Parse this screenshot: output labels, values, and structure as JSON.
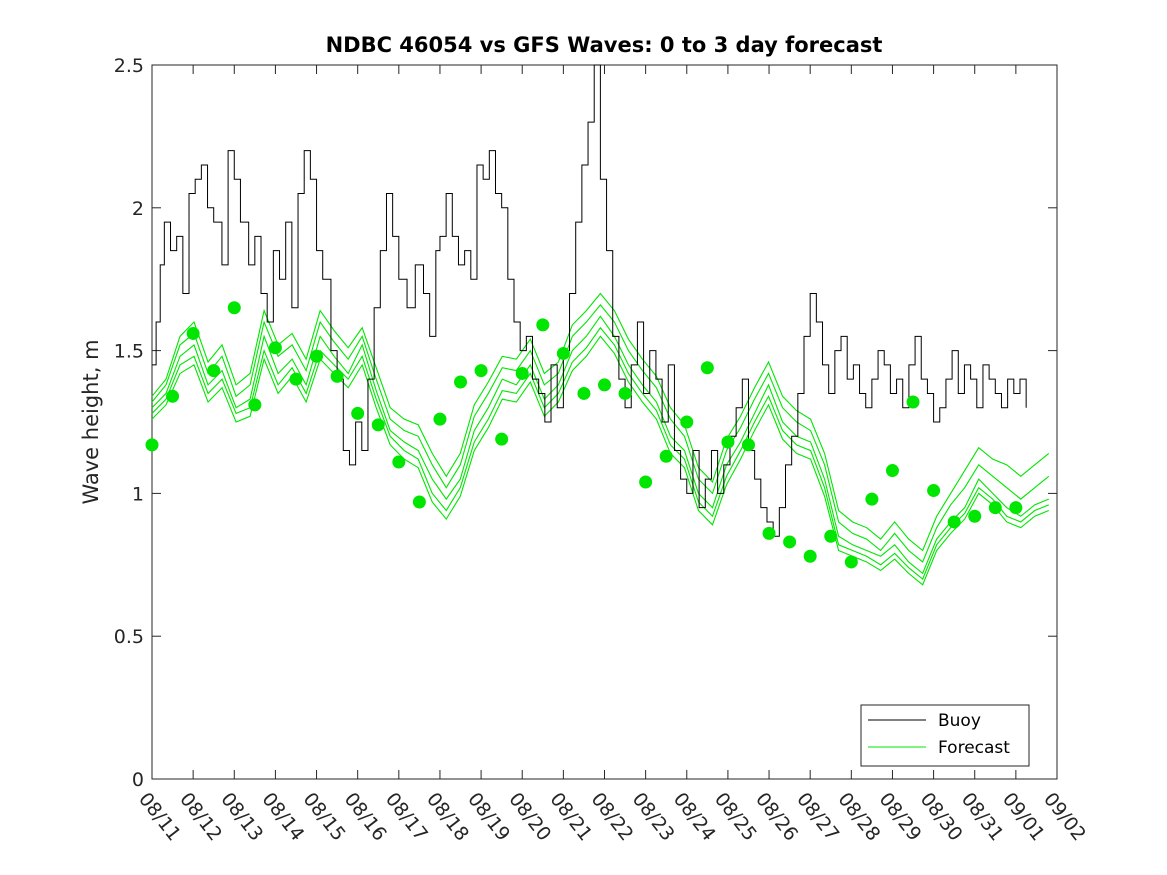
{
  "chart_data": {
    "type": "line",
    "title": "NDBC 46054 vs GFS Waves: 0 to 3 day forecast",
    "xlabel": "",
    "ylabel": "Wave height, m",
    "ylim": [
      0,
      2.5
    ],
    "yticks": [
      0,
      0.5,
      1,
      1.5,
      2,
      2.5
    ],
    "ytick_labels": [
      "0",
      "0.5",
      "1",
      "1.5",
      "2",
      "2.5"
    ],
    "xlim_days": [
      0,
      22
    ],
    "xtick_labels": [
      "08/11",
      "08/12",
      "08/13",
      "08/14",
      "08/15",
      "08/16",
      "08/17",
      "08/18",
      "08/19",
      "08/20",
      "08/21",
      "08/22",
      "08/23",
      "08/24",
      "08/25",
      "08/26",
      "08/27",
      "08/28",
      "08/29",
      "08/30",
      "08/31",
      "09/01",
      "09/02"
    ],
    "legend": {
      "position": "bottom-right",
      "entries": [
        "Buoy",
        "Forecast"
      ]
    },
    "colors": {
      "buoy": "#000000",
      "forecast": "#00e600",
      "axis": "#262626"
    },
    "buoy": {
      "name": "Buoy",
      "x": [
        0.0,
        0.1,
        0.2,
        0.3,
        0.45,
        0.6,
        0.75,
        0.9,
        1.05,
        1.2,
        1.35,
        1.5,
        1.7,
        1.85,
        2.0,
        2.15,
        2.35,
        2.5,
        2.65,
        2.8,
        2.95,
        3.1,
        3.25,
        3.4,
        3.55,
        3.7,
        3.85,
        4.0,
        4.15,
        4.35,
        4.5,
        4.65,
        4.8,
        4.95,
        5.1,
        5.25,
        5.4,
        5.55,
        5.7,
        5.85,
        6.0,
        6.2,
        6.4,
        6.6,
        6.75,
        6.9,
        7.0,
        7.15,
        7.3,
        7.45,
        7.6,
        7.75,
        7.9,
        8.05,
        8.2,
        8.35,
        8.5,
        8.65,
        8.8,
        8.95,
        9.1,
        9.25,
        9.4,
        9.55,
        9.7,
        9.85,
        10.0,
        10.15,
        10.3,
        10.45,
        10.6,
        10.75,
        10.9,
        11.05,
        11.2,
        11.35,
        11.5,
        11.65,
        11.8,
        11.95,
        12.1,
        12.25,
        12.4,
        12.55,
        12.7,
        12.85,
        13.0,
        13.15,
        13.3,
        13.45,
        13.6,
        13.75,
        13.9,
        14.05,
        14.2,
        14.35,
        14.5,
        14.65,
        14.8,
        14.95,
        15.1,
        15.25,
        15.4,
        15.55,
        15.7,
        15.85,
        16.0,
        16.15,
        16.3,
        16.45,
        16.6,
        16.75,
        16.9,
        17.05,
        17.2,
        17.35,
        17.5,
        17.65,
        17.8,
        17.95,
        18.1,
        18.25,
        18.4,
        18.55,
        18.7,
        18.85,
        19.0,
        19.15,
        19.3,
        19.45,
        19.6,
        19.75,
        19.9,
        20.05,
        20.2,
        20.35,
        20.5,
        20.65,
        20.8,
        20.95,
        21.1,
        21.25
      ],
      "y": [
        1.45,
        1.6,
        1.8,
        1.95,
        1.85,
        1.9,
        1.7,
        2.05,
        2.1,
        2.15,
        2.0,
        1.95,
        1.8,
        2.2,
        2.1,
        1.95,
        1.8,
        1.9,
        1.7,
        1.6,
        1.85,
        1.75,
        1.95,
        1.65,
        2.05,
        2.2,
        2.1,
        1.85,
        1.75,
        1.5,
        1.4,
        1.15,
        1.1,
        1.25,
        1.15,
        1.4,
        1.65,
        1.85,
        2.05,
        1.9,
        1.75,
        1.65,
        1.8,
        1.7,
        1.55,
        1.85,
        1.9,
        2.05,
        1.9,
        1.8,
        1.85,
        1.75,
        2.15,
        2.1,
        2.2,
        2.05,
        2.0,
        1.75,
        1.6,
        1.5,
        1.55,
        1.4,
        1.35,
        1.25,
        1.45,
        1.3,
        1.5,
        1.7,
        1.95,
        2.15,
        2.3,
        2.5,
        2.1,
        1.85,
        1.55,
        1.4,
        1.3,
        1.45,
        1.6,
        1.35,
        1.5,
        1.4,
        1.25,
        1.45,
        1.15,
        1.05,
        1.0,
        1.15,
        0.95,
        1.05,
        1.15,
        1.0,
        1.1,
        1.2,
        1.3,
        1.4,
        1.15,
        1.05,
        0.95,
        0.9,
        0.85,
        0.95,
        1.1,
        1.2,
        1.35,
        1.55,
        1.7,
        1.6,
        1.45,
        1.35,
        1.5,
        1.55,
        1.4,
        1.45,
        1.35,
        1.3,
        1.4,
        1.5,
        1.45,
        1.35,
        1.4,
        1.3,
        1.45,
        1.55,
        1.4,
        1.35,
        1.25,
        1.3,
        1.4,
        1.5,
        1.35,
        1.45,
        1.4,
        1.3,
        1.45,
        1.4,
        1.35,
        1.3,
        1.4,
        1.35,
        1.4,
        1.3
      ]
    },
    "forecast_runs": [
      [
        1.3,
        1.35,
        1.48,
        1.52,
        1.38,
        1.43,
        1.3,
        1.33,
        1.55,
        1.42,
        1.47,
        1.38,
        1.55,
        1.48,
        1.42,
        1.52,
        1.36,
        1.22,
        1.18,
        1.15,
        1.05,
        0.98,
        1.05,
        1.22,
        1.3,
        1.4,
        1.38,
        1.45,
        1.33,
        1.38,
        1.5,
        1.55,
        1.62,
        1.55,
        1.45,
        1.38,
        1.32,
        1.2,
        1.15,
        1.0,
        0.95,
        1.1,
        1.18,
        1.28,
        1.38,
        1.25,
        1.2,
        1.18,
        1.05,
        0.85,
        0.82,
        0.8,
        0.78,
        0.82,
        0.76,
        0.72,
        0.84,
        0.9,
        0.95,
        1.05,
        1.0,
        0.95,
        0.92,
        0.96,
        0.98
      ],
      [
        1.32,
        1.38,
        1.52,
        1.56,
        1.42,
        1.48,
        1.34,
        1.38,
        1.6,
        1.48,
        1.52,
        1.43,
        1.6,
        1.53,
        1.47,
        1.55,
        1.4,
        1.26,
        1.22,
        1.2,
        1.1,
        1.02,
        1.1,
        1.27,
        1.35,
        1.44,
        1.43,
        1.5,
        1.38,
        1.42,
        1.55,
        1.6,
        1.66,
        1.6,
        1.5,
        1.43,
        1.37,
        1.26,
        1.2,
        1.05,
        1.0,
        1.15,
        1.23,
        1.33,
        1.42,
        1.3,
        1.25,
        1.22,
        1.1,
        0.9,
        0.86,
        0.84,
        0.8,
        0.86,
        0.8,
        0.76,
        0.88,
        0.96,
        1.02,
        1.1,
        1.06,
        1.02,
        0.98,
        1.02,
        1.06
      ],
      [
        1.28,
        1.33,
        1.45,
        1.48,
        1.35,
        1.4,
        1.28,
        1.3,
        1.5,
        1.38,
        1.44,
        1.35,
        1.5,
        1.45,
        1.4,
        1.48,
        1.33,
        1.2,
        1.15,
        1.12,
        1.0,
        0.94,
        1.02,
        1.18,
        1.26,
        1.36,
        1.35,
        1.42,
        1.3,
        1.35,
        1.46,
        1.51,
        1.58,
        1.52,
        1.42,
        1.35,
        1.29,
        1.17,
        1.12,
        0.97,
        0.92,
        1.06,
        1.15,
        1.25,
        1.34,
        1.22,
        1.17,
        1.15,
        1.02,
        0.82,
        0.8,
        0.78,
        0.75,
        0.79,
        0.74,
        0.7,
        0.82,
        0.88,
        0.93,
        1.02,
        0.98,
        0.92,
        0.9,
        0.94,
        0.96
      ],
      [
        1.34,
        1.4,
        1.55,
        1.6,
        1.46,
        1.52,
        1.38,
        1.42,
        1.64,
        1.52,
        1.56,
        1.47,
        1.64,
        1.57,
        1.51,
        1.58,
        1.44,
        1.3,
        1.26,
        1.24,
        1.14,
        1.06,
        1.14,
        1.31,
        1.39,
        1.48,
        1.47,
        1.54,
        1.42,
        1.46,
        1.59,
        1.64,
        1.7,
        1.64,
        1.54,
        1.47,
        1.41,
        1.3,
        1.24,
        1.09,
        1.04,
        1.19,
        1.27,
        1.37,
        1.46,
        1.34,
        1.29,
        1.26,
        1.14,
        0.94,
        0.9,
        0.88,
        0.84,
        0.9,
        0.84,
        0.8,
        0.92,
        1.0,
        1.08,
        1.16,
        1.12,
        1.1,
        1.06,
        1.1,
        1.14
      ],
      [
        1.26,
        1.31,
        1.42,
        1.45,
        1.32,
        1.37,
        1.25,
        1.27,
        1.47,
        1.35,
        1.41,
        1.32,
        1.47,
        1.42,
        1.37,
        1.45,
        1.3,
        1.17,
        1.12,
        1.09,
        0.97,
        0.91,
        0.99,
        1.15,
        1.23,
        1.33,
        1.32,
        1.39,
        1.27,
        1.32,
        1.43,
        1.48,
        1.55,
        1.49,
        1.39,
        1.32,
        1.26,
        1.14,
        1.09,
        0.94,
        0.89,
        1.03,
        1.12,
        1.22,
        1.31,
        1.19,
        1.14,
        1.12,
        0.99,
        0.8,
        0.78,
        0.76,
        0.73,
        0.77,
        0.72,
        0.68,
        0.8,
        0.86,
        0.91,
        1.0,
        0.96,
        0.9,
        0.88,
        0.92,
        0.94
      ]
    ],
    "forecast_markers": {
      "x": [
        0.0,
        0.5,
        1.0,
        1.5,
        2.0,
        2.5,
        3.0,
        3.5,
        4.0,
        4.5,
        5.0,
        5.5,
        6.0,
        6.5,
        7.0,
        7.5,
        8.0,
        8.5,
        9.0,
        9.5,
        10.0,
        10.5,
        11.0,
        11.5,
        12.0,
        12.5,
        13.0,
        13.5,
        14.0,
        14.5,
        15.0,
        15.5,
        16.0,
        16.5,
        17.0,
        17.5,
        18.0,
        18.5,
        19.0,
        19.5,
        20.0,
        20.5,
        21.0
      ],
      "y": [
        1.17,
        1.34,
        1.56,
        1.43,
        1.65,
        1.31,
        1.51,
        1.4,
        1.48,
        1.41,
        1.28,
        1.24,
        1.11,
        0.97,
        1.26,
        1.39,
        1.43,
        1.19,
        1.42,
        1.59,
        1.49,
        1.35,
        1.38,
        1.35,
        1.04,
        1.13,
        1.25,
        1.44,
        1.18,
        1.17,
        0.86,
        0.83,
        0.78,
        0.85,
        0.76,
        0.98,
        1.08,
        1.32,
        1.01,
        0.9,
        0.92,
        0.95,
        0.95
      ]
    }
  }
}
